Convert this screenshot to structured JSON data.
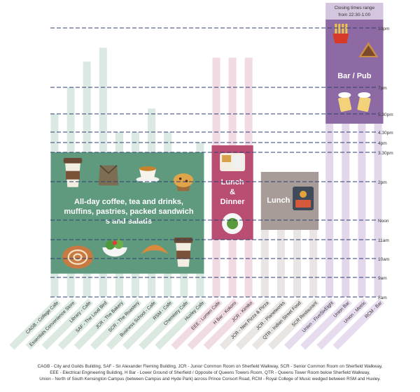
{
  "chart_data": {
    "type": "bar",
    "subtype": "floating-range",
    "time_axis": {
      "ticks": [
        {
          "label": "8am",
          "hour": 8
        },
        {
          "label": "9am",
          "hour": 9
        },
        {
          "label": "10am",
          "hour": 10
        },
        {
          "label": "11am",
          "hour": 11
        },
        {
          "label": "Noon",
          "hour": 12
        },
        {
          "label": "2pm",
          "hour": 14
        },
        {
          "label": "3.30pm",
          "hour": 15.5
        },
        {
          "label": "4pm",
          "hour": 16
        },
        {
          "label": "4.30pm",
          "hour": 16.5
        },
        {
          "label": "5.30pm",
          "hour": 17.5
        },
        {
          "label": "7pm",
          "hour": 19
        },
        {
          "label": "10pm",
          "hour": 22
        }
      ],
      "range": [
        8,
        22
      ]
    },
    "categories": [
      {
        "name": "CAGB - College Cafe",
        "open": 8.5,
        "close": 17.5,
        "group": "cafe"
      },
      {
        "name": "Essentials Convenience Store",
        "open": 8,
        "close": 19,
        "group": "cafe"
      },
      {
        "name": "Library - Cafe",
        "open": 8,
        "close": 20.3,
        "group": "cafe"
      },
      {
        "name": "SAF - The Loud Bird",
        "open": 8,
        "close": 21,
        "group": "cafe"
      },
      {
        "name": "JCR - The Bakery",
        "open": 8,
        "close": 16.5,
        "group": "cafe"
      },
      {
        "name": "SCR - The Roastery",
        "open": 8.5,
        "close": 16.5,
        "group": "cafe"
      },
      {
        "name": "Business School - Cafe",
        "open": 8.5,
        "close": 17.8,
        "group": "cafe"
      },
      {
        "name": "RSM - Cafe",
        "open": 9,
        "close": 16.5,
        "group": "cafe"
      },
      {
        "name": "Chemistry Cafe",
        "open": 8.5,
        "close": 15.5,
        "group": "cafe"
      },
      {
        "name": "Huxley Cafe",
        "open": 9,
        "close": 16,
        "group": "cafe"
      },
      {
        "name": "EEE - Lumen Cafe",
        "open": 11,
        "close": 20.5,
        "group": "dinner"
      },
      {
        "name": "H Bar - Kokoro",
        "open": 11,
        "close": 20.5,
        "group": "dinner"
      },
      {
        "name": "JCR - Kimiko",
        "open": 11,
        "close": 20.5,
        "group": "dinner"
      },
      {
        "name": "JCR - Neo Pizza & Pizza",
        "open": 11.5,
        "close": 14.5,
        "group": "lunch"
      },
      {
        "name": "JCR - Planetworks",
        "open": 11.5,
        "close": 14.5,
        "group": "lunch"
      },
      {
        "name": "QTR - Indian Street Food",
        "open": 11.5,
        "close": 14.5,
        "group": "lunch"
      },
      {
        "name": "SCR Restaurant",
        "open": 11.5,
        "close": 14.5,
        "group": "lunch"
      },
      {
        "name": "Union - FiveSixEight",
        "open": 12,
        "close": 23,
        "group": "bar"
      },
      {
        "name": "Union Bar",
        "open": 12,
        "close": 23,
        "group": "bar"
      },
      {
        "name": "Union - Metric",
        "open": 12,
        "close": 23,
        "group": "bar"
      },
      {
        "name": "RCM - Bar",
        "open": 12,
        "close": 23,
        "group": "bar"
      }
    ],
    "groups": {
      "cafe": {
        "color": "#5f9a7e",
        "text": "All-day coffee, tea and drinks, muffins, pastries, packed sandwiches and salads"
      },
      "dinner": {
        "color": "#b94d72",
        "text_lines": [
          "Lunch",
          "&",
          "Dinner"
        ]
      },
      "lunch": {
        "color": "#a89c98",
        "text": "Lunch"
      },
      "bar": {
        "color": "#8e6aa5",
        "text": "Bar / Pub",
        "note_lines": [
          "Closing times range",
          "from 22:30-1:00"
        ]
      }
    }
  },
  "legend_lines": [
    "CAGB - City and Guilds Building, SAF - Sir Alexander Fleming Building, JCR - Junior Common Room on Sherfield Walkway, SCR - Senior Common Room on Sherfield Walkway,",
    "EEE - Electrical Engineering Building, H Bar - Lower Ground of Sherfield / Opposite of Queens Towers Room,  QTR - Queens Tower Room below Sherfield Walkway,",
    "Union - North of South Kensington Campus (between Campus and Hyde Park) across Prince Consort Road, RCM - Royal College of Music wedged between RSM and Huxley."
  ],
  "colors": {
    "dash": "#2c3e73",
    "cafe_light": "#d3e5dc",
    "dinner_light": "#efd4de",
    "lunch_light": "#e5e1df",
    "bar_light": "#ddd0e7"
  }
}
